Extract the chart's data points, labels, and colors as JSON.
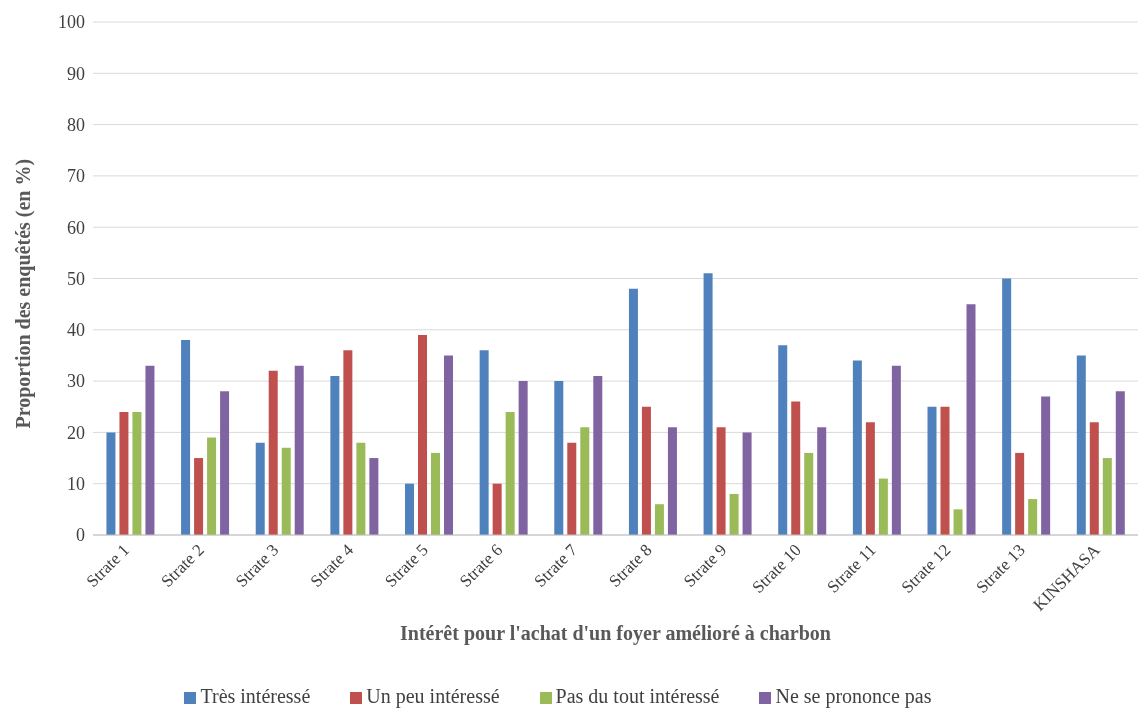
{
  "chart_data": {
    "type": "bar",
    "xlabel": "Intérêt pour l'achat d'un foyer amélioré à charbon",
    "ylabel": "Proportion des enquêtés (en %)",
    "categories": [
      "Strate 1",
      "Strate 2",
      "Strate 3",
      "Strate 4",
      "Strate 5",
      "Strate 6",
      "Strate 7",
      "Strate 8",
      "Strate 9",
      "Strate 10",
      "Strate 11",
      "Strate 12",
      "Strate 13",
      "KINSHASA"
    ],
    "series": [
      {
        "name": "Très intéressé",
        "color": "#4f81bd",
        "values": [
          20,
          38,
          18,
          31,
          10,
          36,
          30,
          48,
          51,
          37,
          34,
          25,
          50,
          35
        ]
      },
      {
        "name": "Un peu intéressé",
        "color": "#c0504d",
        "values": [
          24,
          15,
          32,
          36,
          39,
          10,
          18,
          25,
          21,
          26,
          22,
          25,
          16,
          22
        ]
      },
      {
        "name": "Pas du tout intéressé",
        "color": "#9bbb59",
        "values": [
          24,
          19,
          17,
          18,
          16,
          24,
          21,
          6,
          8,
          16,
          11,
          5,
          7,
          15
        ]
      },
      {
        "name": "Ne se prononce pas",
        "color": "#8064a2",
        "values": [
          33,
          28,
          33,
          15,
          35,
          30,
          31,
          21,
          20,
          21,
          33,
          45,
          27,
          28
        ]
      }
    ],
    "ylim": [
      0,
      100
    ],
    "yticks": [
      0,
      10,
      20,
      30,
      40,
      50,
      60,
      70,
      80,
      90,
      100
    ],
    "grid": "y",
    "legend": "bottom"
  }
}
